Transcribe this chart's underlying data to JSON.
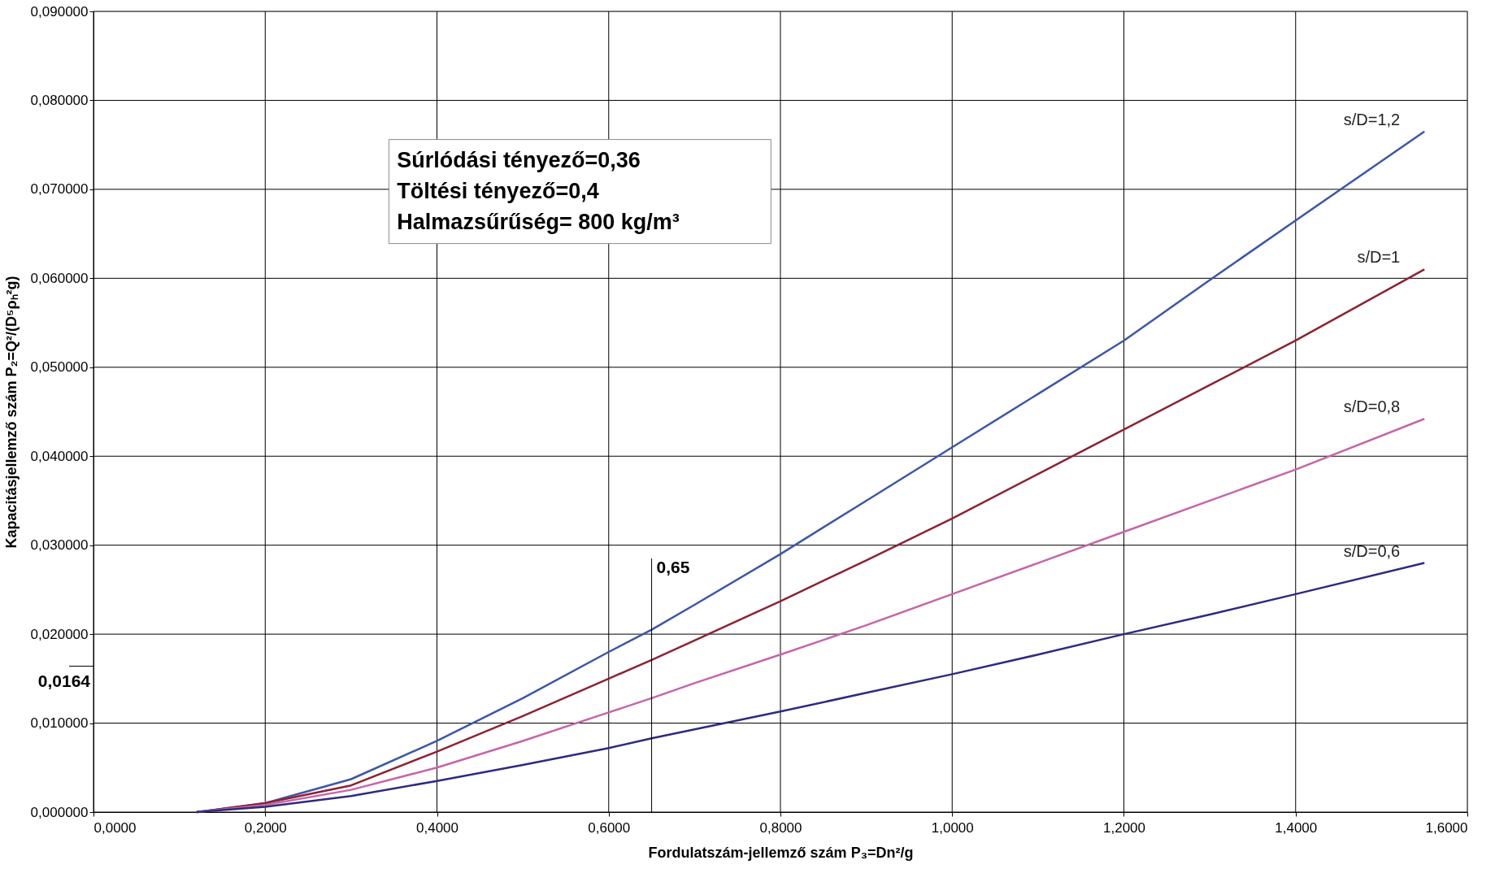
{
  "chart_data": {
    "type": "line",
    "xlabel": "Fordulatszám-jellemző szám  P₃=Dn²/g",
    "ylabel": "Kapacitásjellemző szám  P₂=Q²/(D⁵ρₕ²g)",
    "x": [
      0.12,
      0.2,
      0.3,
      0.4,
      0.5,
      0.6,
      0.65,
      0.7,
      0.8,
      0.9,
      1.0,
      1.1,
      1.2,
      1.3,
      1.4,
      1.55
    ],
    "series": [
      {
        "name": "s/D=1,2",
        "color": "#3a57a8",
        "values": [
          0,
          0.001,
          0.0037,
          0.008,
          0.0128,
          0.018,
          0.0205,
          0.0233,
          0.029,
          0.035,
          0.041,
          0.047,
          0.053,
          0.0598,
          0.0665,
          0.0765
        ]
      },
      {
        "name": "s/D=1",
        "color": "#8b2332",
        "values": [
          0,
          0.001,
          0.003,
          0.0068,
          0.0108,
          0.015,
          0.0171,
          0.0193,
          0.0237,
          0.0283,
          0.033,
          0.038,
          0.043,
          0.048,
          0.053,
          0.061
        ]
      },
      {
        "name": "s/D=0,8",
        "color": "#c565a8",
        "values": [
          0,
          0.0008,
          0.0025,
          0.005,
          0.008,
          0.0112,
          0.0128,
          0.0145,
          0.0177,
          0.021,
          0.0245,
          0.028,
          0.0315,
          0.035,
          0.0385,
          0.0442
        ]
      },
      {
        "name": "s/D=0,6",
        "color": "#2e2a80",
        "values": [
          0,
          0.0006,
          0.0018,
          0.0035,
          0.0053,
          0.0072,
          0.0083,
          0.0093,
          0.0113,
          0.0134,
          0.0155,
          0.0177,
          0.02,
          0.0222,
          0.0245,
          0.028
        ]
      }
    ],
    "xlim": [
      0,
      1.6
    ],
    "ylim": [
      0,
      0.09
    ],
    "xticks": [
      {
        "value": 0,
        "label": "0,0000"
      },
      {
        "value": 0.2,
        "label": "0,2000"
      },
      {
        "value": 0.4,
        "label": "0,4000"
      },
      {
        "value": 0.6,
        "label": "0,6000"
      },
      {
        "value": 0.8,
        "label": "0,8000"
      },
      {
        "value": 1.0,
        "label": "1,0000"
      },
      {
        "value": 1.2,
        "label": "1,2000"
      },
      {
        "value": 1.4,
        "label": "1,4000"
      },
      {
        "value": 1.6,
        "label": "1,6000"
      }
    ],
    "yticks": [
      {
        "value": 0,
        "label": "0,000000"
      },
      {
        "value": 0.01,
        "label": "0,010000"
      },
      {
        "value": 0.02,
        "label": "0,020000"
      },
      {
        "value": 0.03,
        "label": "0,030000"
      },
      {
        "value": 0.04,
        "label": "0,040000"
      },
      {
        "value": 0.05,
        "label": "0,050000"
      },
      {
        "value": 0.06,
        "label": "0,060000"
      },
      {
        "value": 0.07,
        "label": "0,070000"
      },
      {
        "value": 0.08,
        "label": "0,080000"
      },
      {
        "value": 0.09,
        "label": "0,090000"
      }
    ],
    "grid": true,
    "line_style": "solid",
    "marker": "none",
    "ref_lines": [
      {
        "axis": "x",
        "value": 0.65,
        "label": "0,65",
        "color": "#000000"
      },
      {
        "axis": "y",
        "value": 0.0164,
        "label": "0,0164",
        "color": "#000000"
      }
    ],
    "annotations": [
      "Súrlódási tényező=0,36",
      "Töltési tényező=0,4",
      "Halmazsűrűség= 800 kg/m³"
    ]
  }
}
